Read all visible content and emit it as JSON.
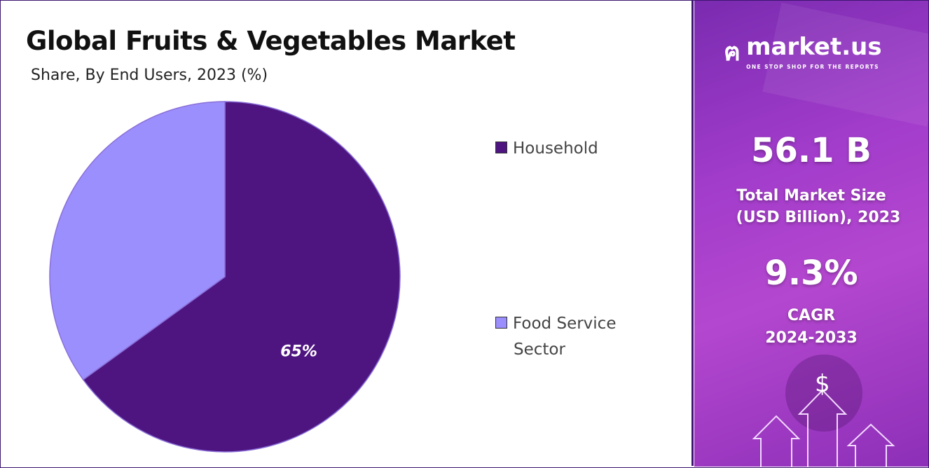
{
  "header": {
    "title": "Global Fruits & Vegetables Market",
    "subtitle": "Share, By End Users, 2023 (%)"
  },
  "chart_data": {
    "type": "pie",
    "title": "Global Fruits & Vegetables Market",
    "subtitle": "Share, By End Users, 2023 (%)",
    "categories": [
      "Household",
      "Food Service Sector"
    ],
    "values": [
      65,
      35
    ],
    "colors": [
      "#4e1581",
      "#9b8ffd"
    ],
    "data_labels": [
      "65%",
      ""
    ],
    "legend_position": "right"
  },
  "legend": {
    "items": [
      {
        "label": "Household"
      },
      {
        "label": "Food Service Sector",
        "line1": "Food Service",
        "line2": "Sector"
      }
    ]
  },
  "sidebar": {
    "brand": "market.us",
    "tagline": "ONE STOP SHOP FOR THE REPORTS",
    "market_size": "56.1 B",
    "market_size_label1": "Total Market Size",
    "market_size_label2": "(USD Billion), 2023",
    "cagr": "9.3%",
    "cagr_label1": "CAGR",
    "cagr_label2": "2024-2033",
    "dollar": "$"
  }
}
